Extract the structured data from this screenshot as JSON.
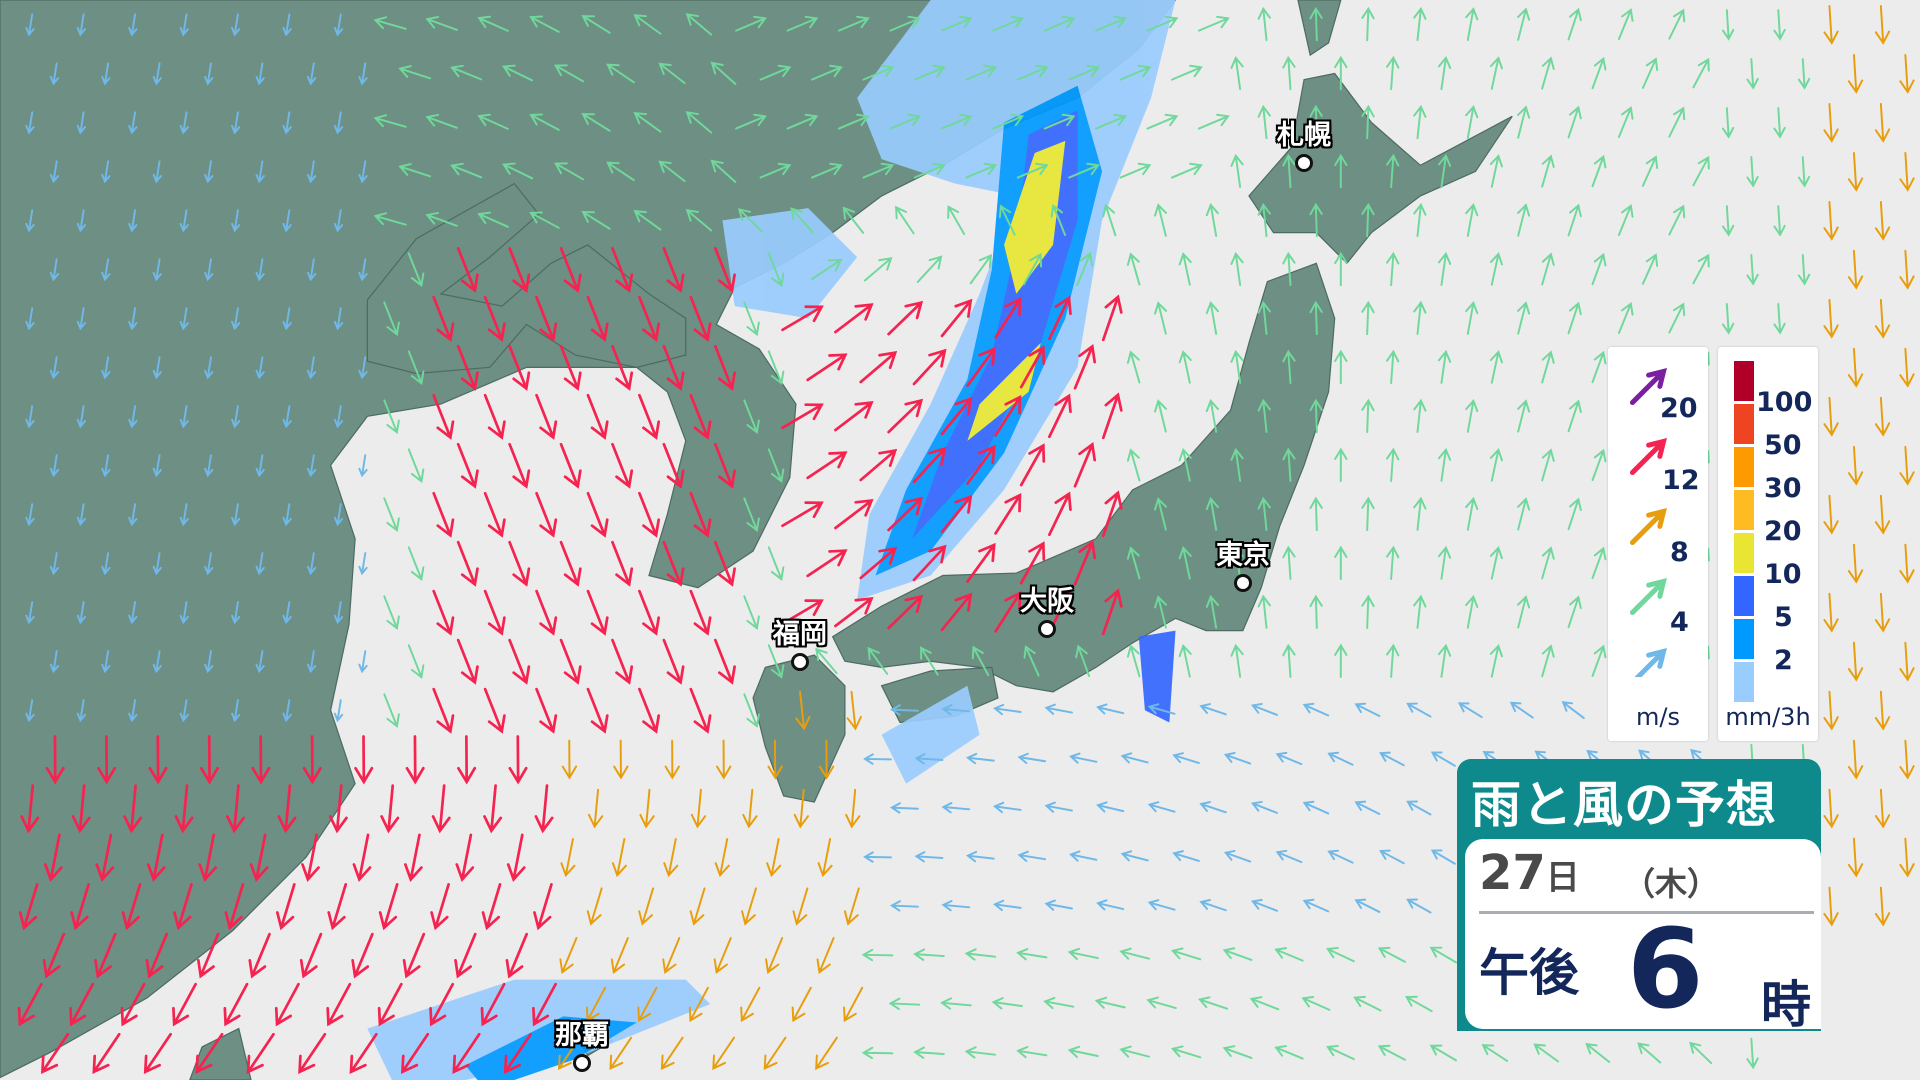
{
  "title": "雨と風の予想",
  "forecast": {
    "date": "27",
    "date_unit": "日",
    "weekday": "（木）",
    "period": "午後",
    "hour": "6",
    "hour_unit": "時"
  },
  "cities": [
    {
      "name": "札幌"
    },
    {
      "name": "東京"
    },
    {
      "name": "大阪"
    },
    {
      "name": "福岡"
    },
    {
      "name": "那覇"
    }
  ],
  "wind_legend": {
    "unit": "m/s",
    "levels": [
      {
        "value": "20",
        "color": "#7a1fa2"
      },
      {
        "value": "12",
        "color": "#f5234f"
      },
      {
        "value": "8",
        "color": "#e89e0c"
      },
      {
        "value": "4",
        "color": "#6fd89a"
      },
      {
        "value": "",
        "color": "#6fb8e8"
      }
    ]
  },
  "rain_legend": {
    "unit": "mm/3h",
    "colors": [
      "#b0002a",
      "#ee4422",
      "#ff9900",
      "#ffbb22",
      "#e8e633",
      "#3366ff",
      "#0099ff",
      "#99ccff"
    ],
    "labels": [
      "100",
      "50",
      "30",
      "20",
      "10",
      "5",
      "2"
    ]
  },
  "colors": {
    "land": "#6e8f84",
    "sea": "#ececec",
    "title_bg": "#0e8a8c"
  }
}
